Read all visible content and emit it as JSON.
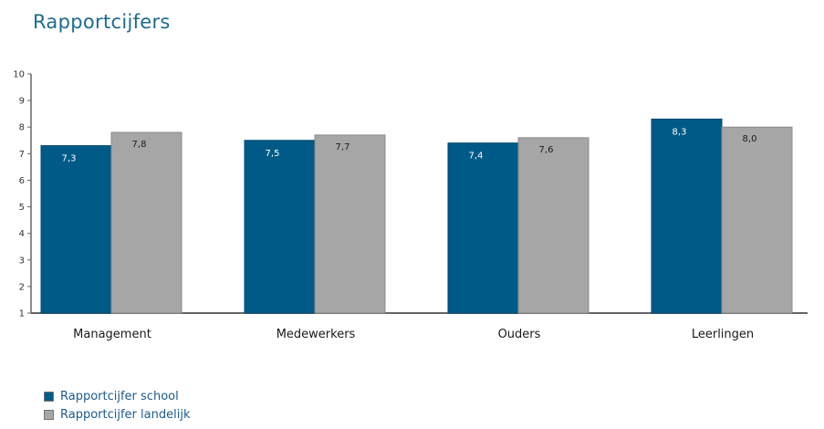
{
  "chart_data": {
    "type": "bar",
    "title": "Rapportcijfers",
    "categories": [
      "Management",
      "Medewerkers",
      "Ouders",
      "Leerlingen"
    ],
    "series": [
      {
        "name": "Rapportcijfer school",
        "color": "#005a87",
        "values": [
          7.3,
          7.5,
          7.4,
          8.3
        ],
        "labels": [
          "7,3",
          "7,5",
          "7,4",
          "8,3"
        ]
      },
      {
        "name": "Rapportcijfer landelijk",
        "color": "#a6a6a6",
        "values": [
          7.8,
          7.7,
          7.6,
          8.0
        ],
        "labels": [
          "7,8",
          "7,7",
          "7,6",
          "8,0"
        ]
      }
    ],
    "ylim": [
      1,
      10
    ],
    "yticks": [
      "1",
      "2",
      "3",
      "4",
      "5",
      "6",
      "7",
      "8",
      "9",
      "10"
    ],
    "xlabel": "",
    "ylabel": "",
    "grid": false,
    "legend_position": "bottom-left"
  }
}
